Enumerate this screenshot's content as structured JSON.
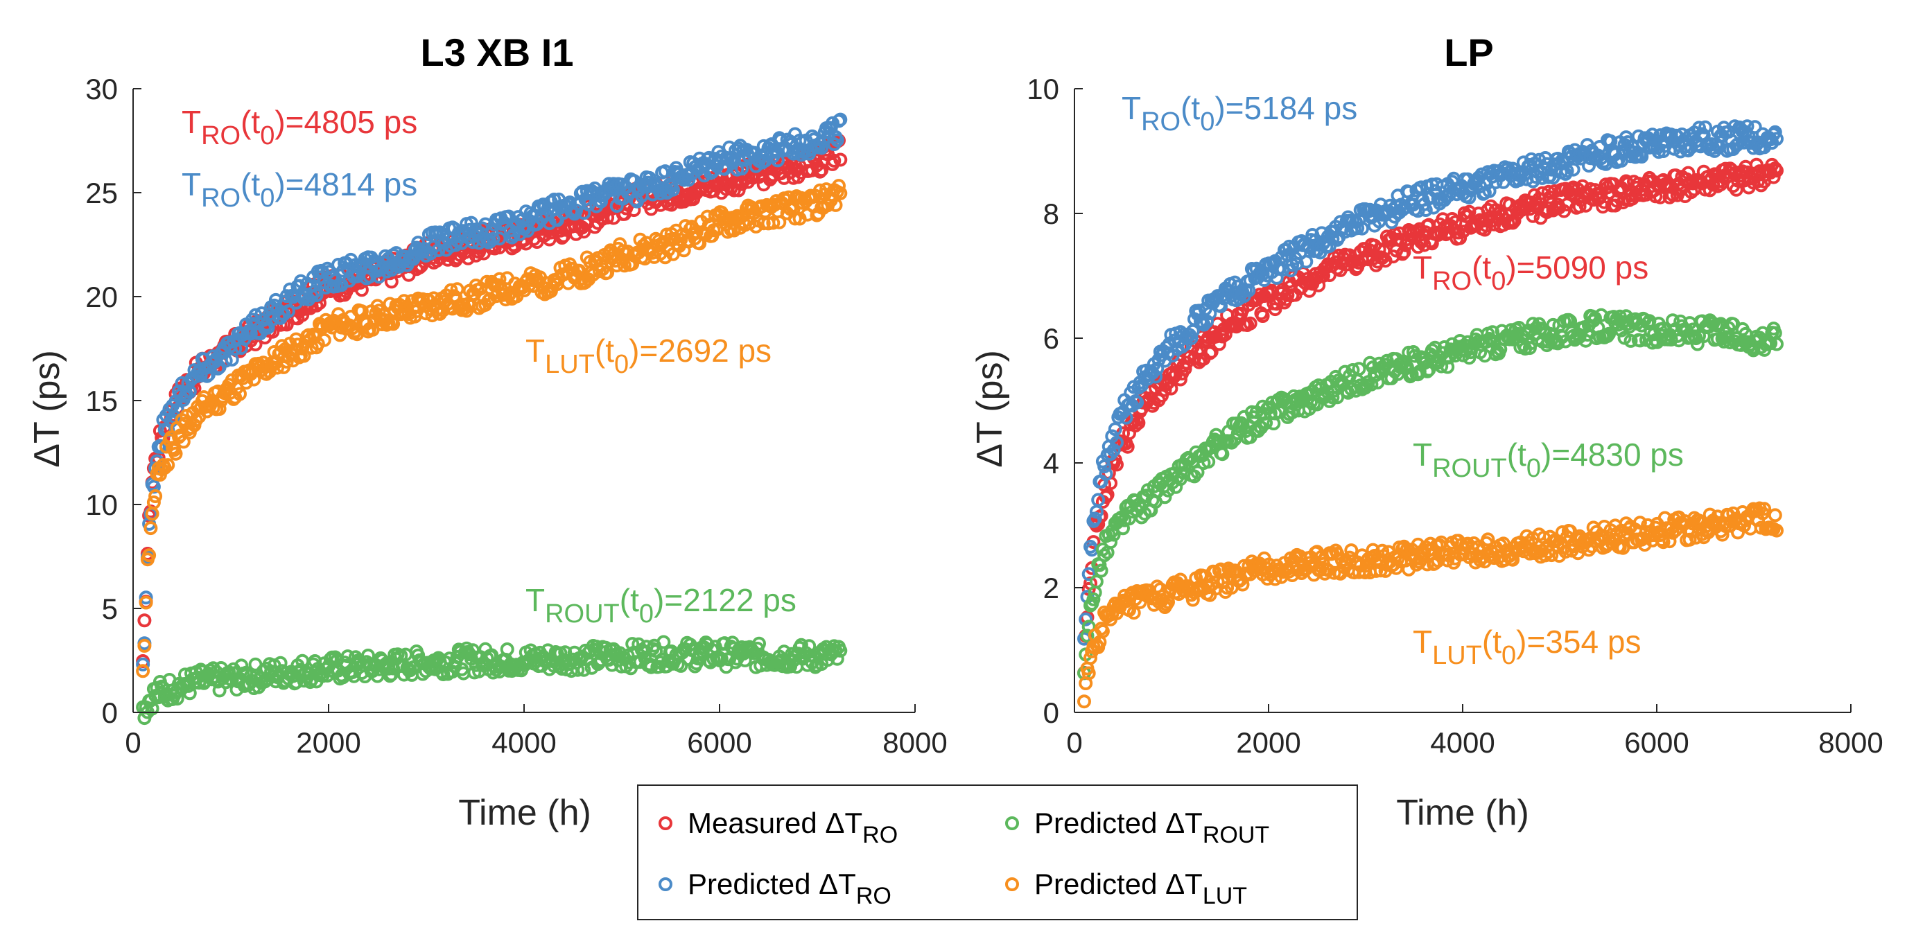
{
  "chart_data": [
    {
      "type": "scatter",
      "title": "L3 XB I1",
      "xlabel": "Time (h)",
      "ylabel": "ΔT (ps)",
      "xlim": [
        0,
        8000
      ],
      "ylim": [
        0,
        30
      ],
      "xticks": [
        "0",
        "2000",
        "4000",
        "6000",
        "8000"
      ],
      "yticks": [
        "0",
        "5",
        "10",
        "15",
        "20",
        "25",
        "30"
      ],
      "series": [
        {
          "name": "Measured ΔT_RO",
          "color": "#e8363a",
          "x": [
            100,
            150,
            200,
            300,
            500,
            700,
            1000,
            1500,
            2000,
            2500,
            3000,
            3500,
            4000,
            4500,
            5000,
            5500,
            6000,
            6500,
            7000,
            7250
          ],
          "values": [
            2,
            8,
            11.5,
            13.5,
            15.5,
            16.5,
            17.5,
            19,
            20.5,
            21,
            22,
            22.5,
            23,
            23.5,
            24.5,
            25,
            25.5,
            26,
            26.5,
            27
          ]
        },
        {
          "name": "Predicted ΔT_RO",
          "color": "#4b8bc8",
          "x": [
            100,
            150,
            200,
            300,
            500,
            700,
            1000,
            1500,
            2000,
            2500,
            3000,
            3500,
            4000,
            4500,
            5000,
            5500,
            6000,
            6500,
            7000,
            7250
          ],
          "values": [
            2,
            8,
            11,
            13.5,
            15.5,
            16.5,
            17.5,
            19.5,
            21,
            21.5,
            22.5,
            23,
            23.5,
            24.5,
            25,
            25.5,
            26.5,
            27,
            27.5,
            28
          ]
        },
        {
          "name": "Predicted ΔT_ROUT",
          "color": "#5cb85c",
          "x": [
            100,
            150,
            200,
            300,
            500,
            700,
            1000,
            1500,
            2000,
            2500,
            3000,
            3500,
            4000,
            4500,
            5000,
            5500,
            6000,
            6500,
            7000,
            7250
          ],
          "values": [
            0.1,
            0.5,
            0.8,
            1,
            1.3,
            1.5,
            1.6,
            1.9,
            2.1,
            2.2,
            2.4,
            2.5,
            2.5,
            2.6,
            2.7,
            2.8,
            2.8,
            2.7,
            2.7,
            2.7
          ]
        },
        {
          "name": "Predicted ΔT_LUT",
          "color": "#f78f1e",
          "x": [
            100,
            150,
            200,
            300,
            500,
            700,
            1000,
            1500,
            2000,
            2500,
            3000,
            3500,
            4000,
            4500,
            5000,
            5500,
            6000,
            6500,
            7000,
            7250
          ],
          "values": [
            2,
            7,
            10,
            12,
            13.5,
            14.5,
            15.5,
            17,
            18.5,
            19,
            19.5,
            20,
            20.5,
            21,
            22,
            22.5,
            23.5,
            24,
            24.5,
            25
          ]
        }
      ],
      "annotations": [
        {
          "base": "T",
          "sub": "RO",
          "rest": "(t",
          "sub2": "0",
          "tail": ")=4805 ps",
          "color": "#e8363a"
        },
        {
          "base": "T",
          "sub": "RO",
          "rest": "(t",
          "sub2": "0",
          "tail": ")=4814 ps",
          "color": "#4b8bc8"
        },
        {
          "base": "T",
          "sub": "LUT",
          "rest": "(t",
          "sub2": "0",
          "tail": ")=2692 ps",
          "color": "#f78f1e"
        },
        {
          "base": "T",
          "sub": "ROUT",
          "rest": "(t",
          "sub2": "0",
          "tail": ")=2122 ps",
          "color": "#5cb85c"
        }
      ]
    },
    {
      "type": "scatter",
      "title": "LP",
      "xlabel": "Time (h)",
      "ylabel": "ΔT (ps)",
      "xlim": [
        0,
        8000
      ],
      "ylim": [
        0,
        10
      ],
      "xticks": [
        "0",
        "2000",
        "4000",
        "6000",
        "8000"
      ],
      "yticks": [
        "0",
        "2",
        "4",
        "6",
        "8",
        "10"
      ],
      "series": [
        {
          "name": "Measured ΔT_RO",
          "color": "#e8363a",
          "x": [
            100,
            150,
            200,
            300,
            500,
            700,
            1000,
            1500,
            2000,
            2500,
            3000,
            3500,
            4000,
            4500,
            5000,
            5500,
            6000,
            6500,
            7000,
            7250
          ],
          "values": [
            0.8,
            2,
            2.8,
            3.5,
            4.3,
            4.8,
            5.4,
            6.1,
            6.6,
            7,
            7.3,
            7.6,
            7.8,
            8,
            8.2,
            8.3,
            8.4,
            8.5,
            8.6,
            8.6
          ]
        },
        {
          "name": "Predicted ΔT_RO",
          "color": "#4b8bc8",
          "x": [
            100,
            150,
            200,
            300,
            500,
            700,
            1000,
            1500,
            2000,
            2500,
            3000,
            3500,
            4000,
            4500,
            5000,
            5500,
            6000,
            6500,
            7000,
            7250
          ],
          "values": [
            1,
            2.3,
            3,
            3.9,
            4.8,
            5.3,
            5.9,
            6.6,
            7.1,
            7.5,
            7.9,
            8.2,
            8.4,
            8.6,
            8.8,
            9,
            9.1,
            9.2,
            9.2,
            9.2
          ]
        },
        {
          "name": "Predicted ΔT_ROUT",
          "color": "#5cb85c",
          "x": [
            100,
            150,
            200,
            300,
            500,
            700,
            1000,
            1500,
            2000,
            2500,
            3000,
            3500,
            4000,
            4500,
            5000,
            5500,
            6000,
            6500,
            7000,
            7250
          ],
          "values": [
            0.5,
            1.5,
            2,
            2.6,
            3.1,
            3.3,
            3.7,
            4.3,
            4.8,
            5.1,
            5.4,
            5.6,
            5.8,
            6,
            6.1,
            6.2,
            6.1,
            6.1,
            6,
            6
          ]
        },
        {
          "name": "Predicted ΔT_LUT",
          "color": "#f78f1e",
          "x": [
            100,
            150,
            200,
            300,
            500,
            700,
            1000,
            1500,
            2000,
            2500,
            3000,
            3500,
            4000,
            4500,
            5000,
            5500,
            6000,
            6500,
            7000,
            7250
          ],
          "values": [
            0.1,
            0.8,
            1.1,
            1.4,
            1.7,
            1.8,
            1.9,
            2.1,
            2.3,
            2.4,
            2.4,
            2.5,
            2.6,
            2.6,
            2.7,
            2.8,
            2.9,
            3,
            3.1,
            3.1
          ]
        }
      ],
      "annotations": [
        {
          "base": "T",
          "sub": "RO",
          "rest": "(t",
          "sub2": "0",
          "tail": ")=5184 ps",
          "color": "#4b8bc8"
        },
        {
          "base": "T",
          "sub": "RO",
          "rest": "(t",
          "sub2": "0",
          "tail": ")=5090 ps",
          "color": "#e8363a"
        },
        {
          "base": "T",
          "sub": "ROUT",
          "rest": "(t",
          "sub2": "0",
          "tail": ")=4830 ps",
          "color": "#5cb85c"
        },
        {
          "base": "T",
          "sub": "LUT",
          "rest": "(t",
          "sub2": "0",
          "tail": ")=354 ps",
          "color": "#f78f1e"
        }
      ]
    }
  ],
  "legend": {
    "position": "bottom-center",
    "items": [
      {
        "label": "Measured ΔT",
        "sub": "RO",
        "color": "#e8363a"
      },
      {
        "label": "Predicted ΔT",
        "sub": "ROUT",
        "color": "#5cb85c"
      },
      {
        "label": "Predicted ΔT",
        "sub": "RO",
        "color": "#4b8bc8"
      },
      {
        "label": "Predicted ΔT",
        "sub": "LUT",
        "color": "#f78f1e"
      }
    ]
  }
}
